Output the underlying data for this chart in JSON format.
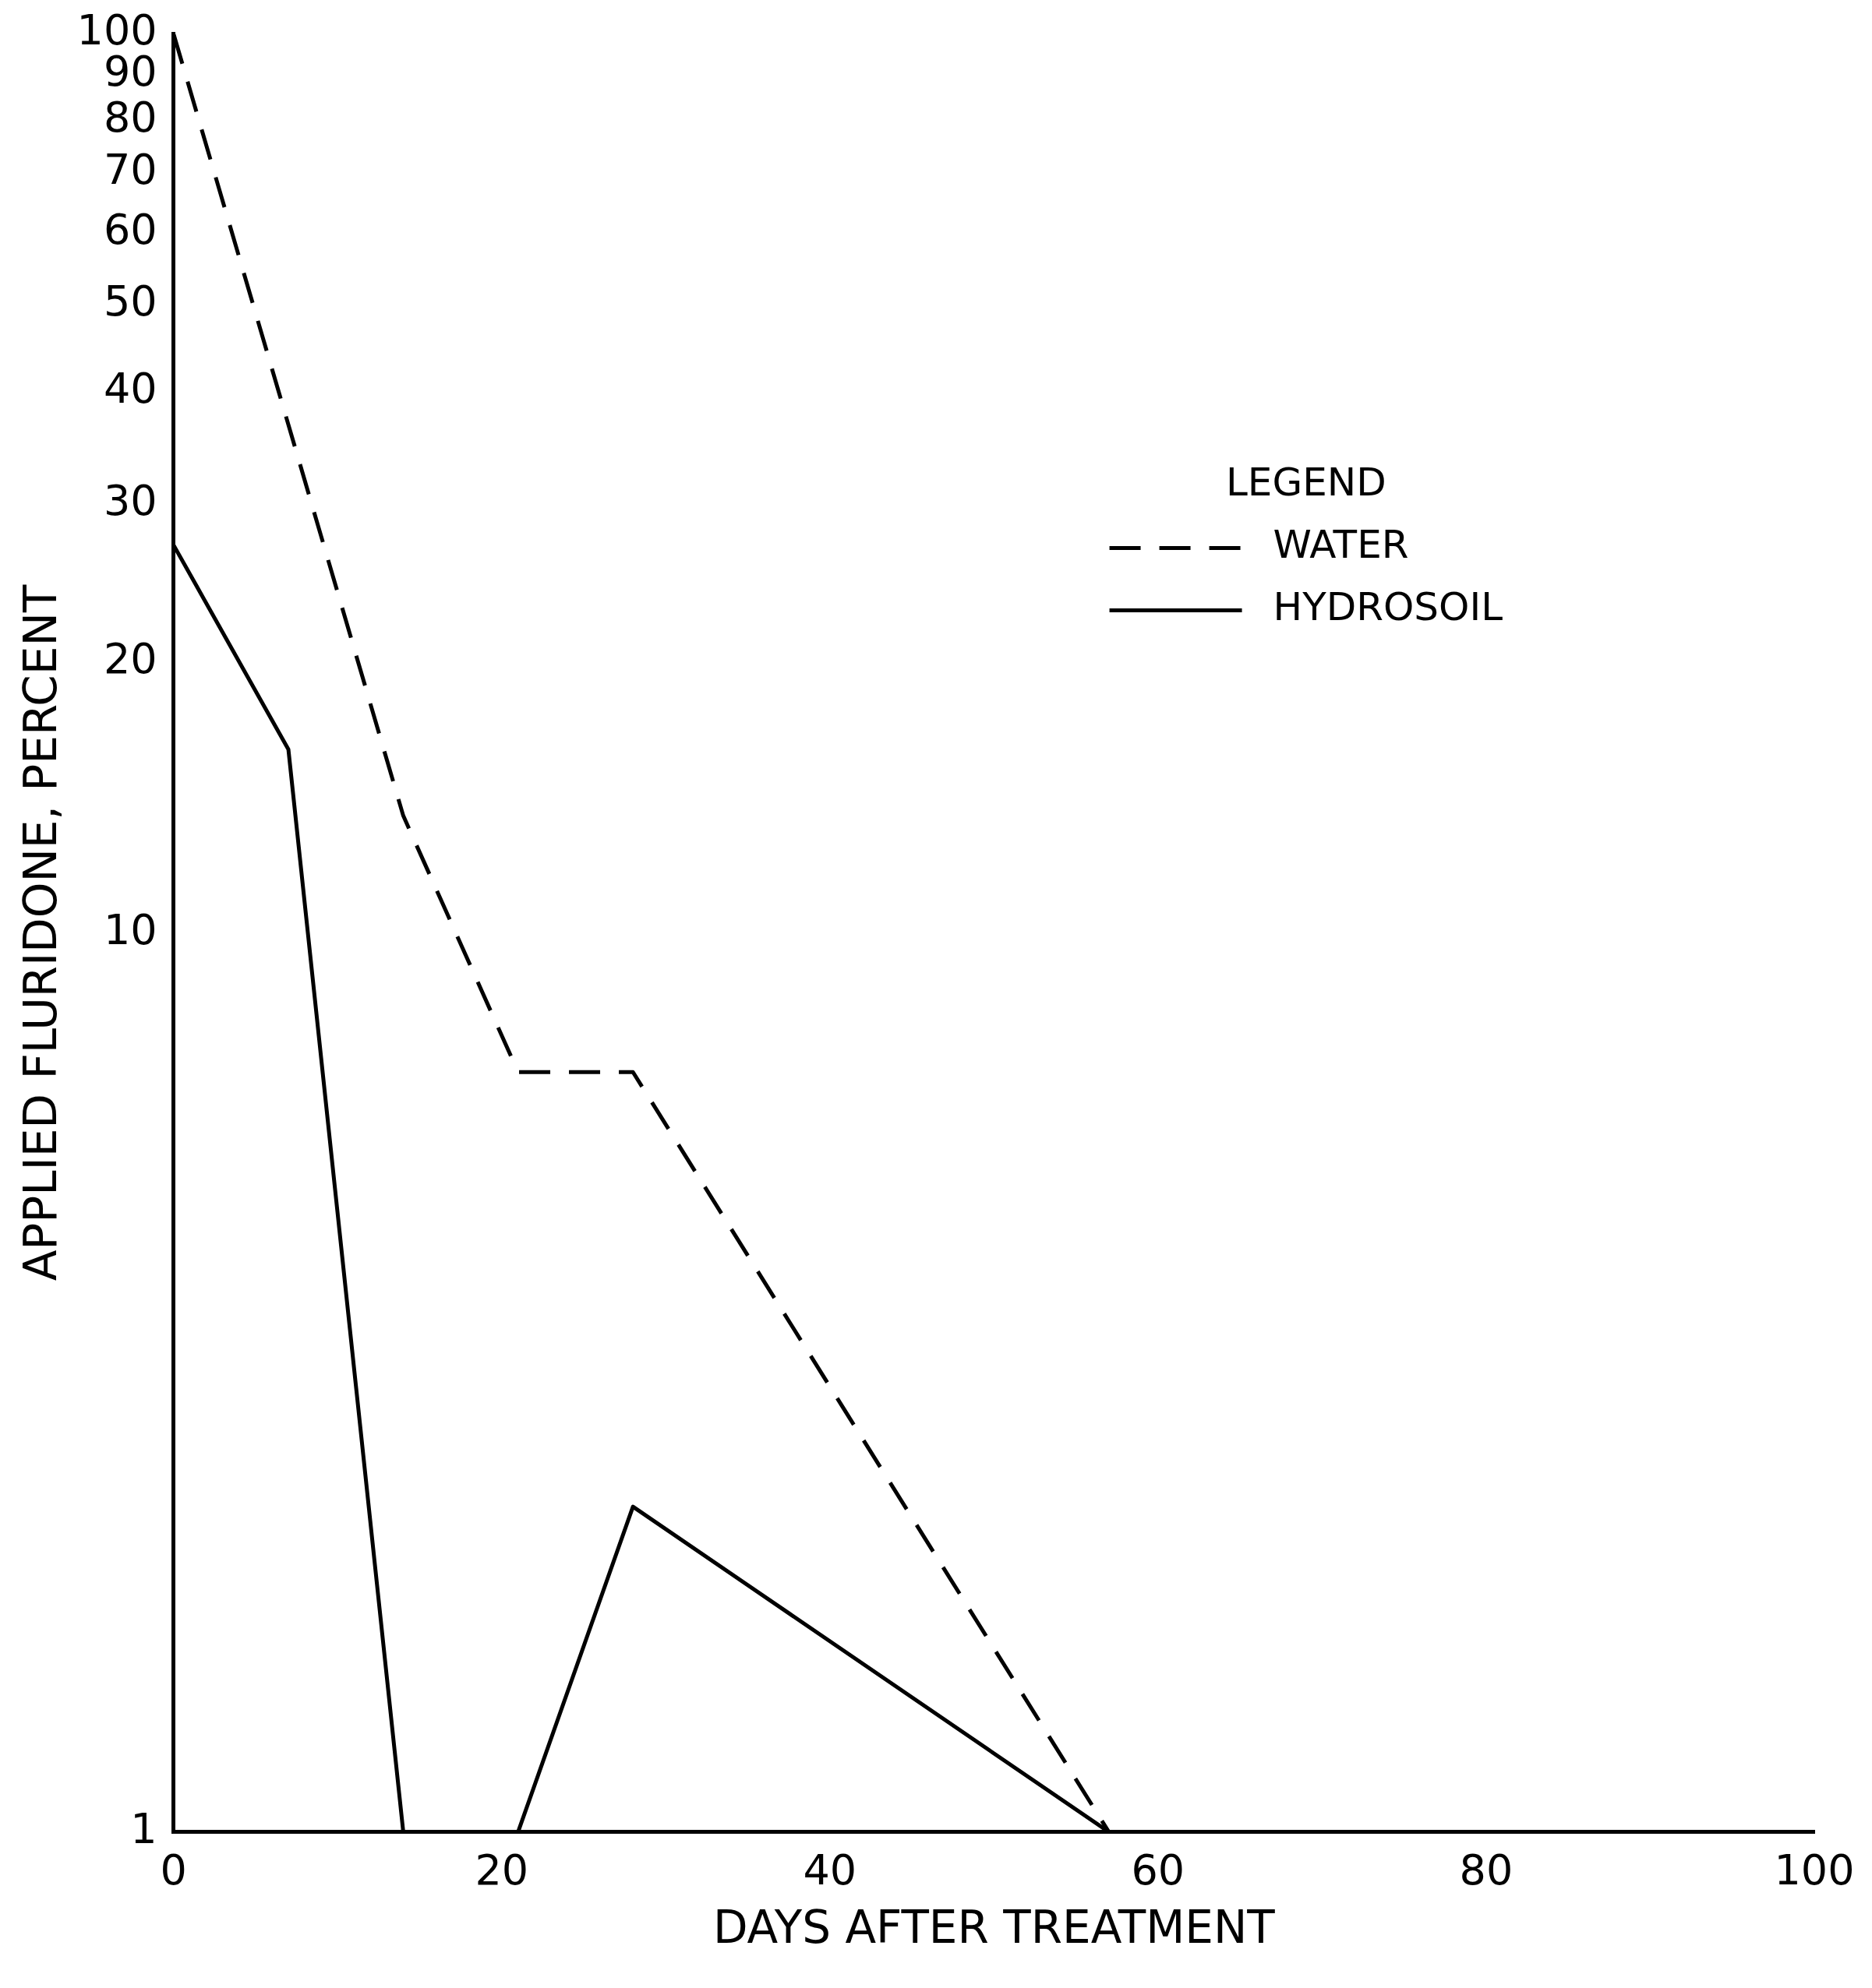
{
  "chart_data": {
    "type": "line",
    "xlabel": "DAYS AFTER TREATMENT",
    "ylabel": "APPLIED FLURIDONE, PERCENT",
    "legend_title": "LEGEND",
    "legend": "top right",
    "grid": false,
    "marker": "none",
    "log": true,
    "xlim": [
      0,
      100
    ],
    "xticks": [
      0,
      20,
      40,
      60,
      80,
      100
    ],
    "ylim": [
      1,
      100
    ],
    "yticks": [
      1,
      10,
      20,
      30,
      40,
      50,
      60,
      70,
      80,
      90,
      100
    ],
    "series": [
      {
        "name": "WATER",
        "color": "#000000",
        "line_style": "dashed",
        "x": [
          0,
          14,
          21,
          28,
          57
        ],
        "values": [
          100,
          13.5,
          7,
          7,
          1
        ]
      },
      {
        "name": "HYDROSOIL",
        "color": "#000000",
        "line_style": "solid",
        "x": [
          0,
          7,
          14,
          21,
          28,
          57
        ],
        "values": [
          27,
          16,
          1,
          1,
          2.3,
          1
        ]
      }
    ]
  }
}
